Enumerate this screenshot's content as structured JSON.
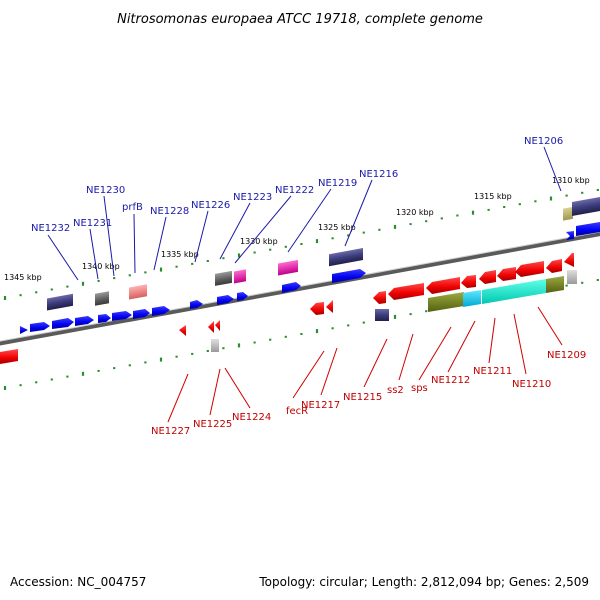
{
  "title": "Nitrosomonas europaea ATCC 19718, complete genome",
  "footer": {
    "accession": "Accession: NC_004757",
    "topology": "Topology: circular; Length: 2,812,094 bp; Genes: 2,509"
  },
  "scale_labels": [
    "1345 kbp",
    "1340 kbp",
    "1335 kbp",
    "1330 kbp",
    "1325 kbp",
    "1320 kbp",
    "1315 kbp",
    "1310 kbp"
  ],
  "gene_labels_top": [
    "NE1206",
    "NE1216",
    "NE1219",
    "NE1222",
    "NE1223",
    "NE1226",
    "NE1228",
    "prfB",
    "NE1230",
    "NE1231",
    "NE1232"
  ],
  "gene_labels_bottom": [
    "NE1209",
    "NE1210",
    "NE1211",
    "NE1212",
    "sps",
    "ss2",
    "NE1215",
    "NE1217",
    "fecR",
    "NE1224",
    "NE1225",
    "NE1227"
  ],
  "colors": {
    "forward_strand": "#0000ff",
    "reverse_strand": "#ff0000",
    "scale_ticks": "#2e8b2e",
    "label_blue": "#1a1aa8",
    "label_red": "#c00000"
  }
}
